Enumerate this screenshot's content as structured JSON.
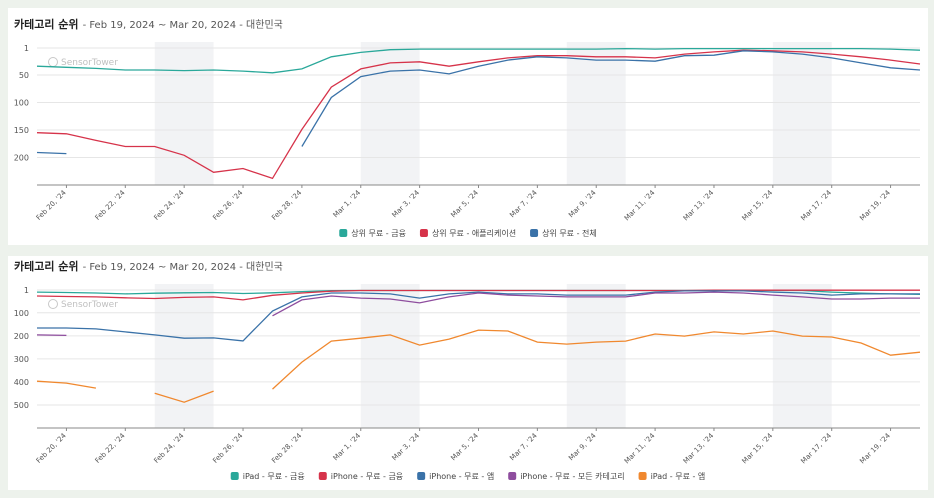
{
  "chart_data": [
    {
      "type": "line",
      "title": "카테고리 순위",
      "subtitle": "- Feb 19, 2024 ~ Mar 20, 2024 - 대한민국",
      "watermark": "SensorTower",
      "categories": [
        null,
        "Feb 20, '24",
        null,
        "Feb 22, '24",
        null,
        "Feb 24, '24",
        null,
        "Feb 26, '24",
        null,
        "Feb 28, '24",
        null,
        "Mar 1, '24",
        null,
        "Mar 3, '24",
        null,
        "Mar 5, '24",
        null,
        "Mar 7, '24",
        null,
        "Mar 9, '24",
        null,
        "Mar 11, '24",
        null,
        "Mar 13, '24",
        null,
        "Mar 15, '24",
        null,
        "Mar 17, '24",
        null,
        "Mar 19, '24",
        null
      ],
      "ylim": [
        1,
        250
      ],
      "inverted": true,
      "yticks": [
        1,
        50,
        100,
        150,
        200
      ],
      "grid": true,
      "legend": "bottom",
      "series": [
        {
          "name": "상위 무료 - 금융",
          "color": "#2aa89a",
          "values": [
            34,
            36,
            38,
            41,
            41,
            42,
            41,
            43,
            46,
            39,
            17,
            9,
            4,
            3,
            3,
            3,
            3,
            3,
            3,
            3,
            2,
            3,
            2,
            2,
            2,
            2,
            2,
            2,
            2,
            3,
            5
          ]
        },
        {
          "name": "상위 무료 - 애플리케이션",
          "color": "#d6334a",
          "values": [
            155,
            157,
            169,
            180,
            180,
            196,
            227,
            220,
            238,
            149,
            72,
            39,
            28,
            26,
            34,
            26,
            19,
            15,
            15,
            17,
            17,
            19,
            12,
            8,
            5,
            6,
            8,
            12,
            17,
            23,
            30
          ]
        },
        {
          "name": "상위 무료 - 전체",
          "color": "#3a72a8",
          "values": [
            191,
            193,
            null,
            null,
            null,
            null,
            null,
            null,
            null,
            180,
            91,
            53,
            43,
            41,
            48,
            34,
            23,
            17,
            19,
            23,
            23,
            25,
            15,
            14,
            6,
            8,
            12,
            19,
            28,
            37,
            41
          ]
        }
      ]
    },
    {
      "type": "line",
      "title": "카테고리 순위",
      "subtitle": "- Feb 19, 2024 ~ Mar 20, 2024 - 대한민국",
      "watermark": "SensorTower",
      "categories": [
        null,
        "Feb 20, '24",
        null,
        "Feb 22, '24",
        null,
        "Feb 24, '24",
        null,
        "Feb 26, '24",
        null,
        "Feb 28, '24",
        null,
        "Mar 1, '24",
        null,
        "Mar 3, '24",
        null,
        "Mar 5, '24",
        null,
        "Mar 7, '24",
        null,
        "Mar 9, '24",
        null,
        "Mar 11, '24",
        null,
        "Mar 13, '24",
        null,
        "Mar 15, '24",
        null,
        "Mar 17, '24",
        null,
        "Mar 19, '24",
        null
      ],
      "ylim": [
        1,
        600
      ],
      "inverted": true,
      "yticks": [
        1,
        100,
        200,
        300,
        400,
        500
      ],
      "grid": true,
      "legend": "bottom",
      "series": [
        {
          "name": "iPad - 무료 - 금융",
          "color": "#2aa89a",
          "values": [
            10,
            12,
            14,
            18,
            15,
            13,
            12,
            16,
            13,
            8,
            4,
            3,
            3,
            3,
            3,
            3,
            3,
            3,
            3,
            3,
            3,
            3,
            3,
            3,
            3,
            3,
            3,
            10,
            15,
            18,
            20
          ]
        },
        {
          "name": "iPhone - 무료 - 금융",
          "color": "#d6334a",
          "values": [
            27,
            29,
            31,
            35,
            38,
            33,
            31,
            44,
            24,
            14,
            6,
            3,
            3,
            3,
            3,
            3,
            3,
            3,
            3,
            3,
            3,
            3,
            3,
            2,
            2,
            2,
            2,
            2,
            2,
            2,
            2
          ]
        },
        {
          "name": "iPhone - 무료 - 앱",
          "color": "#3a72a8",
          "values": [
            166,
            166,
            170,
            183,
            196,
            210,
            209,
            222,
            92,
            31,
            14,
            14,
            18,
            36,
            18,
            10,
            18,
            18,
            23,
            23,
            23,
            10,
            5,
            5,
            5,
            10,
            14,
            23,
            18,
            18,
            18
          ]
        },
        {
          "name": "iPhone - 무료 - 모든 카테고리",
          "color": "#8e4d9e",
          "values": [
            196,
            198,
            null,
            null,
            null,
            null,
            null,
            null,
            113,
            44,
            27,
            36,
            40,
            57,
            31,
            14,
            23,
            27,
            31,
            31,
            31,
            14,
            14,
            10,
            14,
            23,
            31,
            40,
            40,
            36,
            36
          ]
        },
        {
          "name": "iPad - 무료 - 앱",
          "color": "#f0882e",
          "values": [
            397,
            405,
            427,
            null,
            449,
            488,
            440,
            null,
            431,
            314,
            223,
            210,
            196,
            240,
            214,
            175,
            179,
            227,
            236,
            227,
            223,
            192,
            201,
            183,
            192,
            179,
            201,
            205,
            231,
            284,
            271
          ]
        }
      ]
    }
  ]
}
